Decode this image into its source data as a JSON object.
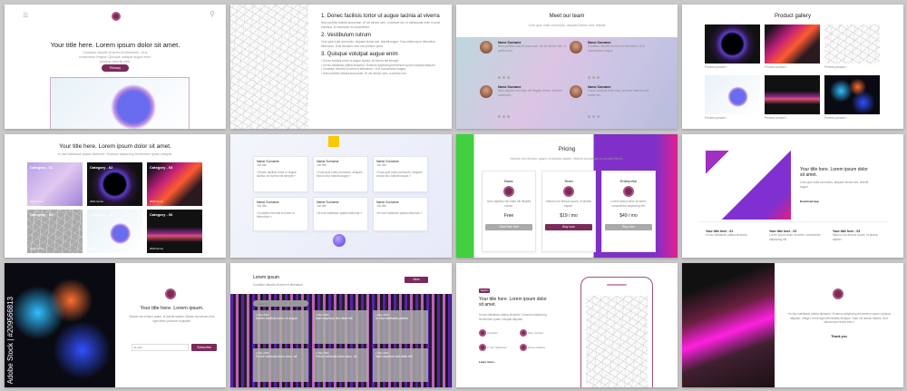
{
  "accent": "#7b2a5a",
  "s1": {
    "title": "Your title here. Lorem ipsum dolor sit amet.",
    "sub": "Curabitur lobortis id lorem id bibendum. Ut id consectetur magna. Quisque volutpat augue enim, pulvinar lobortis nibh.",
    "button": "Primary"
  },
  "s2": {
    "h1": "1. Donec facilisis tortor ut augue lacinia at viverra",
    "p1": "Nam porttitor blandit accumsan. Ut vel dictum sem, a pretium dui. In malesuada enim in dolor euismod, id commodo mi consectetur.",
    "h2": "2. Vestibulum rutrum",
    "p2": "Cras quis nulla commodo, aliquam lectus sed, blandit augue. Cras ullamcorper bibendum bibendum. Duis tincidunt urna non pretium porta.",
    "h3": "3. Quisque volutpat augue enim",
    "bullets": [
      "Donec facilisis tortor ut augue lacinia, at viverra est semper.",
      "In hac habitasse platea dictumst. Vivamus adipiscing fermentum quam volutpat aliquam.",
      "Curabitur lobortis id lorem id bibendum. Ut id consectetur magna.",
      "Nam porttitor blandit accumsan. Ut vel dictum sem, a pretium dui."
    ]
  },
  "s3": {
    "title": "Meet our team",
    "sub": "Cras quis nulla commodo, aliquam lectus sed, blandit",
    "members": [
      {
        "name": "Name Surname",
        "text": "Nam porttitor blandit accumsan. Ut vel dictum sem, a pretium dui."
      },
      {
        "name": "Name Surname",
        "text": "Curabitur lobortis id lorem id bibendum. Ut id consectetur magna."
      },
      {
        "name": "Name Surname",
        "text": "Nam dapibus nisl vitae elit fringilla rutrum. Aenean sollicitudin."
      },
      {
        "name": "Name Surname",
        "text": "Fusce vehicula dolor arcu, sit amet blandit dolor mollis nec."
      }
    ]
  },
  "s4": {
    "title": "Product gallery",
    "link": "Preview product"
  },
  "s5": {
    "title": "Your title here. Lorem ipsum dolor sit amet.",
    "sub": "In hac habitasse platea dictumst. Vivamus adipiscing fermentum quam volutpat.",
    "cats": [
      {
        "label": "Category - 01",
        "count": "1021 Items"
      },
      {
        "label": "Category - 02",
        "count": "2021 Items"
      },
      {
        "label": "Category - 03",
        "count": "3023 Items"
      },
      {
        "label": "Category - 04",
        "count": "1021 Items"
      },
      {
        "label": "Category - 05",
        "count": "2022 Items"
      },
      {
        "label": "Category - 06",
        "count": "2023 Items"
      }
    ]
  },
  "s6": {
    "cards": [
      {
        "name": "Name Surname",
        "job": "Job title",
        "text": "«Donec facilisis tortor ut augue lacinia, at viverra est semper.»"
      },
      {
        "name": "Name Surname",
        "job": "Job title",
        "text": "«Cras quis nulla commodo, aliquam lectus sed, blandit augue.»"
      },
      {
        "name": "Name Surname",
        "job": "Job title",
        "text": "«Cras quis nulla commodo, aliquam lectus sed, blandit augue.»"
      },
      {
        "name": "Name Surname",
        "job": "Job title",
        "text": "«Curabitur lobortis id lorem id bibendum.»"
      },
      {
        "name": "Name Surname",
        "job": "Job title",
        "text": "«In hac habitasse platea dictumst.»"
      },
      {
        "name": "Name Surname",
        "job": "Job title",
        "text": "«In hac habitasse platea dictumst.»"
      }
    ]
  },
  "s7": {
    "title": "Pricing",
    "sub": "Mauris non tempor quam, et lacinia sapien. Mauris accumsan eros eget libero.",
    "plans": [
      {
        "name": "Basic",
        "text": "Nam dapibus nisl vitae elit fringilla rutrum.",
        "price": "Free",
        "button": "Start free trial"
      },
      {
        "name": "Team",
        "text": "Mauris non tempor quam, et lacinia sapien.",
        "price": "$19 / mo",
        "button": "Buy now"
      },
      {
        "name": "Enterprise",
        "text": "Lorem ipsum dolor sit amet, consectetur adipiscing elit.",
        "price": "$49 / mo",
        "button": "Buy now"
      }
    ]
  },
  "s8": {
    "title": "Your title here. Lorem ipsum dolor sit amet.",
    "sub": "Cras quis nulla commodo, aliquam lectus sed, blandit augue.",
    "link": "Download App",
    "cols": [
      {
        "title": "Your title here - 01",
        "text": "In hac habitasse platea dictumst."
      },
      {
        "title": "Your title here - 02",
        "text": "Lorem ipsum dolor sit amet, consectetur adipiscing elit."
      },
      {
        "title": "Your title here - 03",
        "text": "Mauris non tempor quam, et lacinia sapien."
      }
    ]
  },
  "s9": {
    "title": "Your title here. Lorem ipsum.",
    "sub": "Mauris non tempor quam, et lacinia sapien. Mauris accumsan eros eget libero posuere vulputate.",
    "email_placeholder": "E-mail",
    "button": "Subscribe",
    "watermark": "Adobe Stock | #209566813"
  },
  "s10": {
    "title": "Lorem ipsum",
    "sub": "Curabitur lobortis id lorem id bibendum",
    "button": "New",
    "search_placeholder": "Search",
    "cards": [
      {
        "date": "1 May 2020",
        "title": "Donec facilisis tortor ut augue"
      },
      {
        "date": "1 May 2020",
        "title": "Nam dapibus nisl vitae elit"
      },
      {
        "date": "1 May 2020",
        "title": "In hac habitasse platea"
      },
      {
        "date": "1 May 2020",
        "title": "Fusce vehicula dolor arcu, sit"
      },
      {
        "date": "1 May 2020",
        "title": "Fusce vehicula dolor arcu, sit"
      },
      {
        "date": "1 May 2020",
        "title": "Nam dapibus nisl vitae elit"
      }
    ]
  },
  "s11": {
    "tag": "Tagline",
    "title": "Your title here. Lorem ipsum dolor sit amet.",
    "sub": "In hac habitasse platea dictumst. Vivamus adipiscing fermentum quam volutpat aliquam.",
    "features": [
      "Curabitur",
      "Nam porttitor",
      "In hac habitasse",
      "Donec facilisis"
    ],
    "link": "Learn more"
  },
  "s12": {
    "quote": "«In hac habitasse platea dictumst. Vivamus adipiscing fermentum quam volutpat aliquam. Integer et elit eget elit facilisis tristique. Nam vel iaculis mauris. Sed ullamcorper tellus erat.»",
    "thanks": "Thank you"
  }
}
